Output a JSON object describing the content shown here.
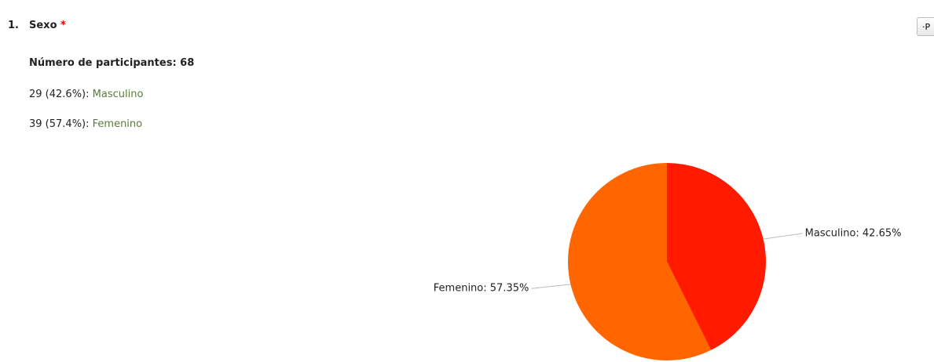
{
  "question": {
    "number": "1.",
    "title": "Sexo",
    "required": "*",
    "button": "·P"
  },
  "participants": "Número de participantes: 68",
  "responses": [
    {
      "count": "29 (42.6%):",
      "label": "Masculino"
    },
    {
      "count": "39 (57.4%):",
      "label": "Femenino"
    }
  ],
  "chart_data": {
    "type": "pie",
    "values": [
      42.65,
      57.35
    ],
    "value_labels": [
      "Masculino: 42.65%",
      "Femenino: 57.35%"
    ],
    "colors": [
      "#ff1a00",
      "#ff6600"
    ]
  }
}
